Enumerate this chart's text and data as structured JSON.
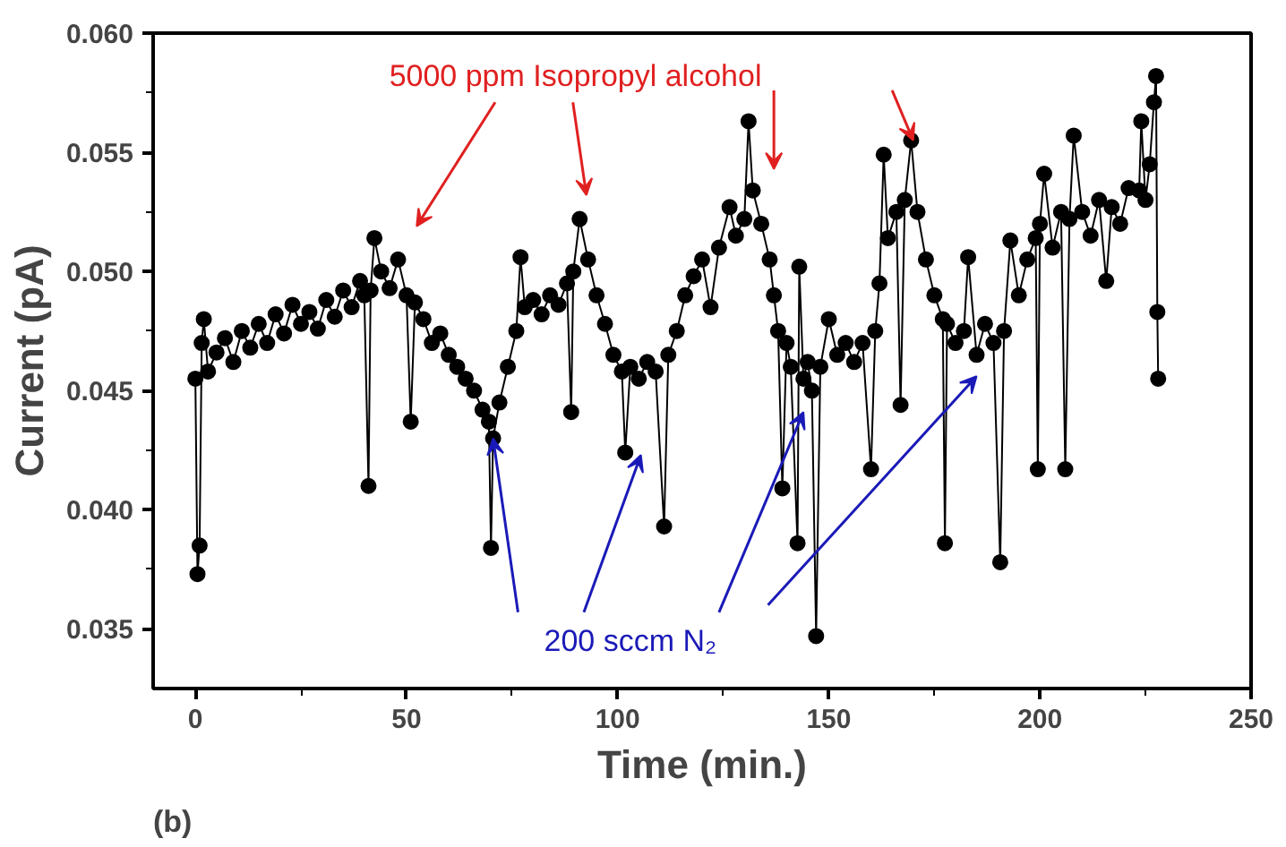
{
  "chart_data": {
    "type": "line",
    "xlabel": "Time (min.)",
    "ylabel": "Current (pA)",
    "xlim": [
      -10,
      250
    ],
    "xticks": [
      0,
      50,
      100,
      150,
      200,
      250
    ],
    "ylim": [
      0.0325,
      0.06
    ],
    "yticks": [
      0.035,
      {
        "value": 0.04,
        "label": "0.040"
      },
      0.045,
      {
        "value": 0.05,
        "label": "0.050"
      },
      0.055,
      {
        "value": 0.06,
        "label": "0.060"
      }
    ],
    "grid": false,
    "marker": "circle",
    "line_style": "solid",
    "annotations": [
      "5000 ppm Isopropyl alcohol",
      {
        "text": "200 sccm N₂",
        "x": 70.5,
        "y": 0.043
      },
      "(b)"
    ],
    "series": [
      {
        "color": "#000000",
        "x": [
          0,
          0.5,
          1,
          1.5,
          2,
          3,
          5,
          7,
          9,
          11,
          13,
          15,
          17,
          19,
          21,
          23,
          25,
          27,
          29,
          31,
          33,
          35,
          37,
          39,
          40,
          41,
          41.5,
          42.4,
          44,
          46,
          48,
          50,
          51,
          52,
          54,
          56,
          58,
          60,
          62,
          64,
          66,
          68,
          69.5,
          70,
          70.5,
          72,
          74,
          76,
          77,
          78,
          80,
          82,
          84,
          86,
          88,
          89,
          89.5,
          91,
          93,
          95,
          97,
          99,
          101,
          101.8,
          103,
          105,
          107,
          109,
          111,
          112,
          114,
          116,
          118,
          120,
          122,
          124,
          126.5,
          128,
          130,
          131,
          132,
          134,
          136,
          137,
          138,
          139,
          140,
          141,
          142.6,
          143,
          144,
          145,
          146,
          147,
          148,
          150,
          152,
          154,
          156,
          158,
          160,
          161,
          162,
          163,
          164,
          166,
          167,
          168,
          169.5,
          171,
          173,
          175,
          177,
          177.5,
          178,
          180,
          182,
          183,
          185,
          187,
          189,
          190.6,
          191.5,
          193,
          195,
          197,
          199,
          199.5,
          200,
          201,
          203,
          205,
          206,
          207,
          208,
          210,
          212,
          214,
          215.7,
          217,
          219,
          221,
          223.5,
          224,
          225,
          226,
          227,
          227.5,
          227.8,
          228
        ],
        "values": [
          0.0455,
          0.0373,
          0.0385,
          0.047,
          0.048,
          0.0458,
          0.0466,
          0.0472,
          0.0462,
          0.0475,
          0.0468,
          0.0478,
          0.047,
          0.0482,
          0.0474,
          0.0486,
          0.0478,
          0.0483,
          0.0476,
          0.0488,
          0.0481,
          0.0492,
          0.0485,
          0.0496,
          0.049,
          0.041,
          0.0492,
          0.0514,
          0.05,
          0.0493,
          0.0505,
          0.049,
          0.0437,
          0.0487,
          0.048,
          0.047,
          0.0474,
          0.0465,
          0.046,
          0.0455,
          0.045,
          0.0442,
          0.0437,
          0.0384,
          0.043,
          0.0445,
          0.046,
          0.0475,
          0.0506,
          0.0485,
          0.0488,
          0.0482,
          0.049,
          0.0486,
          0.0495,
          0.0441,
          0.05,
          0.0522,
          0.0505,
          0.049,
          0.0478,
          0.0465,
          0.0458,
          0.0424,
          0.046,
          0.0455,
          0.0462,
          0.0458,
          0.0393,
          0.0465,
          0.0475,
          0.049,
          0.0498,
          0.0505,
          0.0485,
          0.051,
          0.0527,
          0.0515,
          0.0522,
          0.0563,
          0.0534,
          0.052,
          0.0505,
          0.049,
          0.0475,
          0.0409,
          0.047,
          0.046,
          0.0386,
          0.0502,
          0.0455,
          0.0462,
          0.045,
          0.0347,
          0.046,
          0.048,
          0.0465,
          0.047,
          0.0462,
          0.047,
          0.0417,
          0.0475,
          0.0495,
          0.0549,
          0.0514,
          0.0525,
          0.0444,
          0.053,
          0.0555,
          0.0525,
          0.0505,
          0.049,
          0.048,
          0.0386,
          0.0478,
          0.047,
          0.0475,
          0.0506,
          0.0465,
          0.0478,
          0.047,
          0.0378,
          0.0475,
          0.0513,
          0.049,
          0.0505,
          0.0514,
          0.0417,
          0.052,
          0.0541,
          0.051,
          0.0525,
          0.0417,
          0.0522,
          0.0557,
          0.0525,
          0.0515,
          0.053,
          0.0496,
          0.0527,
          0.052,
          0.0535,
          0.0534,
          0.0563,
          0.053,
          0.0545,
          0.0571,
          0.0582,
          0.0483,
          0.0455
        ]
      }
    ]
  }
}
